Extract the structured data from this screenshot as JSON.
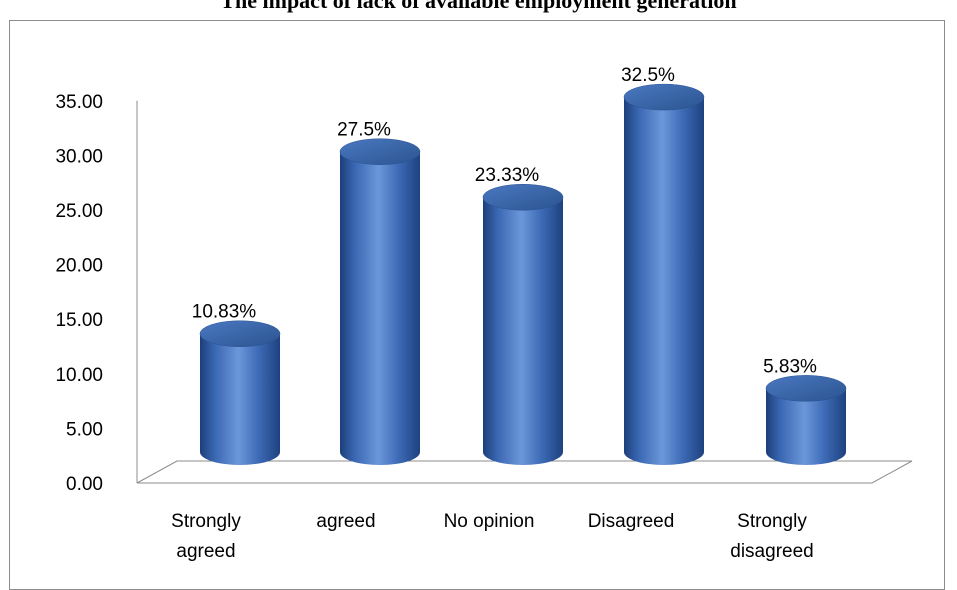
{
  "chart_data": {
    "type": "bar",
    "title": "The impact of lack of available employment generation",
    "categories": [
      [
        "Strongly",
        "agreed"
      ],
      [
        "agreed"
      ],
      [
        "No opinion"
      ],
      [
        "Disagreed"
      ],
      [
        "Strongly",
        "disagreed"
      ]
    ],
    "values": [
      10.83,
      27.5,
      23.33,
      32.5,
      5.83
    ],
    "data_labels": [
      "10.83%",
      "27.5%",
      "23.33%",
      "32.5%",
      "5.83%"
    ],
    "yticks": [
      "0.00",
      "5.00",
      "10.00",
      "15.00",
      "20.00",
      "25.00",
      "30.00",
      "35.00"
    ],
    "ylim": [
      0,
      35
    ],
    "bar_style": "3d-cylinder",
    "bar_color": "#3f6eb8",
    "grid": false,
    "legend": "none"
  }
}
